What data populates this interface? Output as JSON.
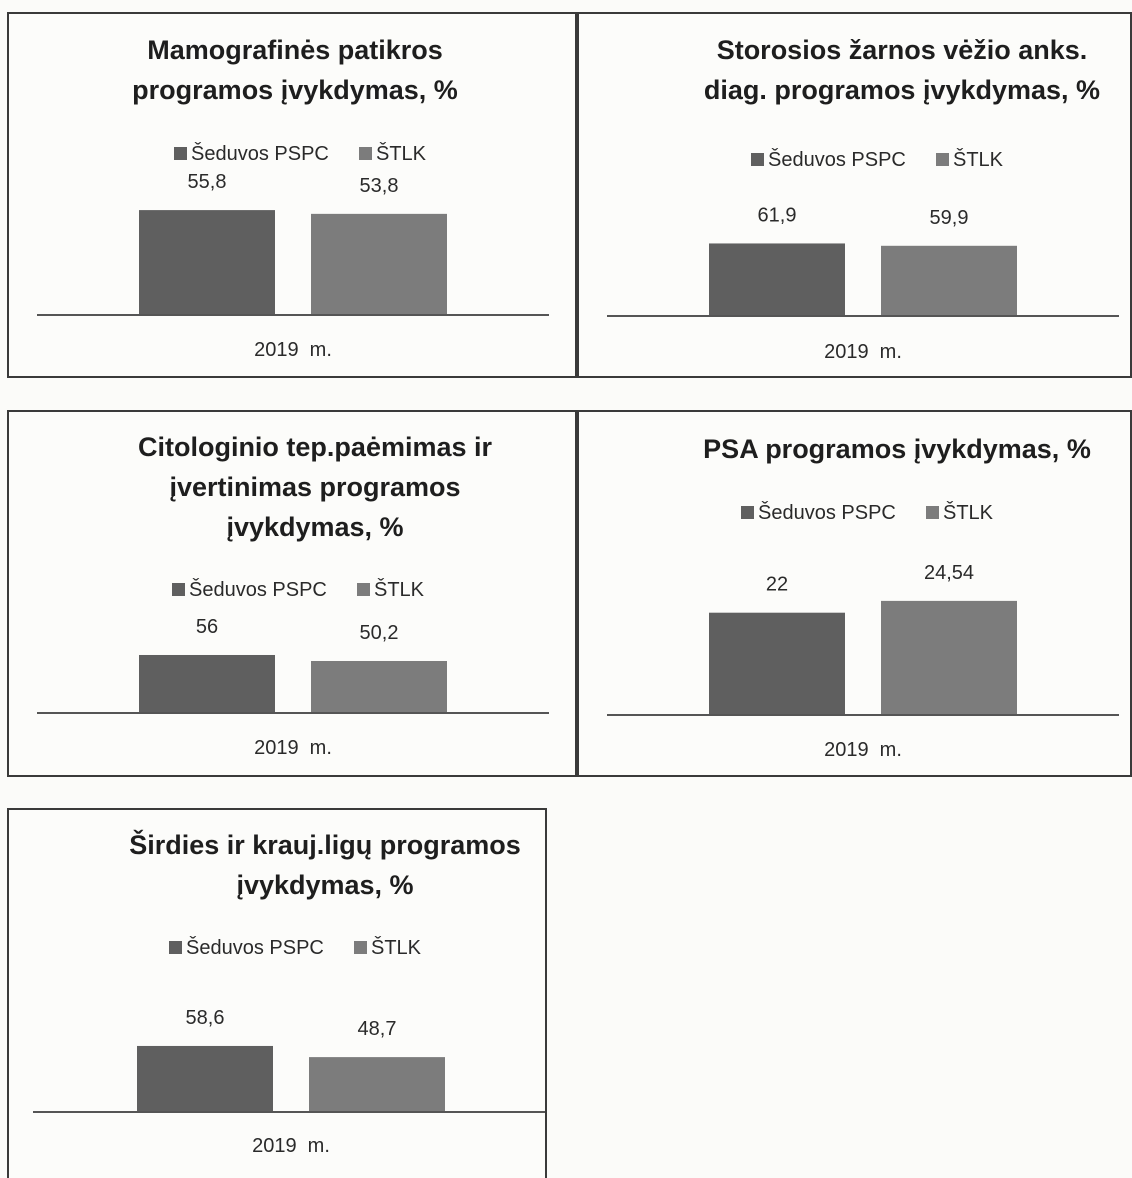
{
  "colors": {
    "seduvos": "#5f5f5f",
    "stlk": "#7c7c7c"
  },
  "chart_data": [
    {
      "type": "bar",
      "title_lines": [
        "Mamografinės patikros",
        "programos įvykdymas, %"
      ],
      "categories": [
        "2019  m."
      ],
      "series": [
        {
          "name": "Šeduvos PSPC",
          "values": [
            55.8
          ],
          "label": "55,8"
        },
        {
          "name": "ŠTLK",
          "values": [
            53.8
          ],
          "label": "53,8"
        }
      ]
    },
    {
      "type": "bar",
      "title_lines": [
        "Storosios žarnos vėžio anks.",
        "diag. programos įvykdymas, %"
      ],
      "categories": [
        "2019  m."
      ],
      "series": [
        {
          "name": "Šeduvos PSPC",
          "values": [
            61.9
          ],
          "label": "61,9"
        },
        {
          "name": "ŠTLK",
          "values": [
            59.9
          ],
          "label": "59,9"
        }
      ]
    },
    {
      "type": "bar",
      "title_lines": [
        "Citologinio tep.paėmimas ir",
        "įvertinimas programos",
        "įvykdymas, %"
      ],
      "categories": [
        "2019  m."
      ],
      "series": [
        {
          "name": "Šeduvos PSPC",
          "values": [
            56
          ],
          "label": "56"
        },
        {
          "name": "ŠTLK",
          "values": [
            50.2
          ],
          "label": "50,2"
        }
      ]
    },
    {
      "type": "bar",
      "title_lines": [
        "PSA programos įvykdymas, %"
      ],
      "categories": [
        "2019  m."
      ],
      "series": [
        {
          "name": "Šeduvos PSPC",
          "values": [
            22
          ],
          "label": "22"
        },
        {
          "name": "ŠTLK",
          "values": [
            24.54
          ],
          "label": "24,54"
        }
      ]
    },
    {
      "type": "bar",
      "title_lines": [
        "Širdies ir krauj.ligų programos",
        "įvykdymas, %"
      ],
      "categories": [
        "2019  m."
      ],
      "series": [
        {
          "name": "Šeduvos PSPC",
          "values": [
            58.6
          ],
          "label": "58,6"
        },
        {
          "name": "ŠTLK",
          "values": [
            48.7
          ],
          "label": "48,7"
        }
      ]
    }
  ]
}
